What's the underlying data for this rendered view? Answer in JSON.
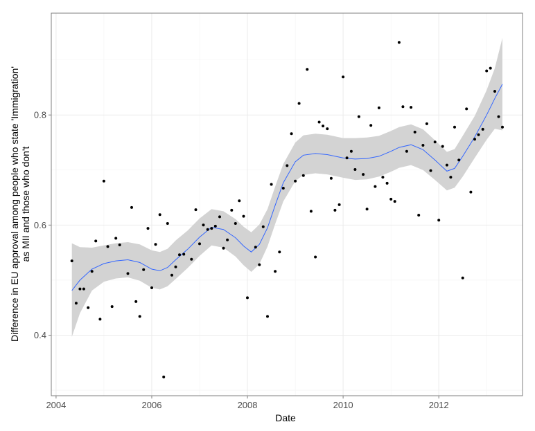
{
  "chart_data": {
    "type": "scatter",
    "xlabel": "Date",
    "ylabel_lines": [
      "Difference in EU approval among people who state 'Immigration'",
      "as MII and those who don't"
    ],
    "xlim": [
      2003.9,
      2013.75
    ],
    "ylim": [
      0.29,
      0.985
    ],
    "x_ticks": [
      2004,
      2006,
      2008,
      2010,
      2012
    ],
    "x_tick_labels": [
      "2004",
      "2006",
      "2008",
      "2010",
      "2012"
    ],
    "y_ticks": [
      0.4,
      0.6,
      0.8
    ],
    "y_tick_labels": [
      "0.4",
      "0.6",
      "0.8"
    ],
    "grid": true,
    "colors": {
      "points": "#000000",
      "smooth": "#3366ff",
      "band": "#d3d3d3",
      "grid": "#ebebeb",
      "panel_border": "#7f7f7f"
    },
    "points": [
      [
        2004.33,
        0.535
      ],
      [
        2004.42,
        0.458
      ],
      [
        2004.5,
        0.484
      ],
      [
        2004.58,
        0.484
      ],
      [
        2004.67,
        0.45
      ],
      [
        2004.75,
        0.516
      ],
      [
        2004.83,
        0.571
      ],
      [
        2004.92,
        0.429
      ],
      [
        2005.0,
        0.68
      ],
      [
        2005.08,
        0.561
      ],
      [
        2005.17,
        0.452
      ],
      [
        2005.25,
        0.576
      ],
      [
        2005.33,
        0.564
      ],
      [
        2005.5,
        0.512
      ],
      [
        2005.58,
        0.632
      ],
      [
        2005.67,
        0.461
      ],
      [
        2005.75,
        0.434
      ],
      [
        2005.83,
        0.519
      ],
      [
        2005.92,
        0.594
      ],
      [
        2006.0,
        0.486
      ],
      [
        2006.08,
        0.565
      ],
      [
        2006.17,
        0.619
      ],
      [
        2006.25,
        0.324
      ],
      [
        2006.33,
        0.603
      ],
      [
        2006.42,
        0.509
      ],
      [
        2006.5,
        0.524
      ],
      [
        2006.58,
        0.546
      ],
      [
        2006.67,
        0.547
      ],
      [
        2006.83,
        0.538
      ],
      [
        2006.92,
        0.628
      ],
      [
        2007.0,
        0.566
      ],
      [
        2007.08,
        0.6
      ],
      [
        2007.17,
        0.592
      ],
      [
        2007.25,
        0.594
      ],
      [
        2007.33,
        0.598
      ],
      [
        2007.42,
        0.615
      ],
      [
        2007.5,
        0.558
      ],
      [
        2007.58,
        0.573
      ],
      [
        2007.67,
        0.627
      ],
      [
        2007.75,
        0.603
      ],
      [
        2007.83,
        0.644
      ],
      [
        2007.92,
        0.616
      ],
      [
        2008.0,
        0.468
      ],
      [
        2008.17,
        0.56
      ],
      [
        2008.25,
        0.528
      ],
      [
        2008.33,
        0.597
      ],
      [
        2008.42,
        0.434
      ],
      [
        2008.5,
        0.674
      ],
      [
        2008.58,
        0.516
      ],
      [
        2008.67,
        0.551
      ],
      [
        2008.75,
        0.667
      ],
      [
        2008.83,
        0.708
      ],
      [
        2008.92,
        0.766
      ],
      [
        2009.0,
        0.68
      ],
      [
        2009.08,
        0.821
      ],
      [
        2009.17,
        0.69
      ],
      [
        2009.25,
        0.883
      ],
      [
        2009.33,
        0.625
      ],
      [
        2009.42,
        0.542
      ],
      [
        2009.5,
        0.787
      ],
      [
        2009.58,
        0.78
      ],
      [
        2009.67,
        0.775
      ],
      [
        2009.75,
        0.685
      ],
      [
        2009.83,
        0.627
      ],
      [
        2009.92,
        0.637
      ],
      [
        2010.0,
        0.869
      ],
      [
        2010.08,
        0.722
      ],
      [
        2010.17,
        0.734
      ],
      [
        2010.25,
        0.701
      ],
      [
        2010.33,
        0.797
      ],
      [
        2010.42,
        0.692
      ],
      [
        2010.5,
        0.629
      ],
      [
        2010.58,
        0.781
      ],
      [
        2010.67,
        0.67
      ],
      [
        2010.75,
        0.813
      ],
      [
        2010.83,
        0.687
      ],
      [
        2010.92,
        0.676
      ],
      [
        2011.0,
        0.647
      ],
      [
        2011.08,
        0.643
      ],
      [
        2011.17,
        0.932
      ],
      [
        2011.25,
        0.815
      ],
      [
        2011.33,
        0.734
      ],
      [
        2011.42,
        0.814
      ],
      [
        2011.5,
        0.769
      ],
      [
        2011.58,
        0.618
      ],
      [
        2011.67,
        0.745
      ],
      [
        2011.75,
        0.784
      ],
      [
        2011.83,
        0.699
      ],
      [
        2011.92,
        0.751
      ],
      [
        2012.0,
        0.609
      ],
      [
        2012.08,
        0.743
      ],
      [
        2012.17,
        0.709
      ],
      [
        2012.25,
        0.687
      ],
      [
        2012.33,
        0.778
      ],
      [
        2012.42,
        0.718
      ],
      [
        2012.5,
        0.504
      ],
      [
        2012.58,
        0.811
      ],
      [
        2012.67,
        0.66
      ],
      [
        2012.75,
        0.756
      ],
      [
        2012.83,
        0.764
      ],
      [
        2012.92,
        0.774
      ],
      [
        2013.0,
        0.88
      ],
      [
        2013.08,
        0.885
      ],
      [
        2013.17,
        0.843
      ],
      [
        2013.25,
        0.797
      ],
      [
        2013.33,
        0.778
      ]
    ],
    "smooth_fit": [
      [
        2004.33,
        0.481
      ],
      [
        2004.5,
        0.5
      ],
      [
        2004.75,
        0.52
      ],
      [
        2005.0,
        0.53
      ],
      [
        2005.25,
        0.535
      ],
      [
        2005.5,
        0.537
      ],
      [
        2005.75,
        0.532
      ],
      [
        2006.0,
        0.52
      ],
      [
        2006.17,
        0.517
      ],
      [
        2006.33,
        0.523
      ],
      [
        2006.5,
        0.537
      ],
      [
        2006.75,
        0.556
      ],
      [
        2007.0,
        0.578
      ],
      [
        2007.25,
        0.596
      ],
      [
        2007.5,
        0.592
      ],
      [
        2007.75,
        0.577
      ],
      [
        2007.92,
        0.562
      ],
      [
        2008.08,
        0.551
      ],
      [
        2008.25,
        0.565
      ],
      [
        2008.42,
        0.595
      ],
      [
        2008.58,
        0.636
      ],
      [
        2008.75,
        0.677
      ],
      [
        2009.0,
        0.715
      ],
      [
        2009.17,
        0.727
      ],
      [
        2009.42,
        0.73
      ],
      [
        2009.67,
        0.728
      ],
      [
        2010.0,
        0.722
      ],
      [
        2010.25,
        0.72
      ],
      [
        2010.5,
        0.721
      ],
      [
        2010.75,
        0.725
      ],
      [
        2011.0,
        0.734
      ],
      [
        2011.17,
        0.741
      ],
      [
        2011.42,
        0.746
      ],
      [
        2011.67,
        0.737
      ],
      [
        2011.92,
        0.718
      ],
      [
        2012.17,
        0.698
      ],
      [
        2012.33,
        0.703
      ],
      [
        2012.5,
        0.725
      ],
      [
        2012.75,
        0.76
      ],
      [
        2013.0,
        0.8
      ],
      [
        2013.17,
        0.83
      ],
      [
        2013.33,
        0.856
      ]
    ],
    "band_upper": [
      [
        2004.33,
        0.567
      ],
      [
        2004.5,
        0.56
      ],
      [
        2004.75,
        0.559
      ],
      [
        2005.0,
        0.563
      ],
      [
        2005.25,
        0.567
      ],
      [
        2005.5,
        0.569
      ],
      [
        2005.75,
        0.565
      ],
      [
        2006.0,
        0.554
      ],
      [
        2006.17,
        0.551
      ],
      [
        2006.33,
        0.557
      ],
      [
        2006.5,
        0.572
      ],
      [
        2006.75,
        0.59
      ],
      [
        2007.0,
        0.612
      ],
      [
        2007.25,
        0.629
      ],
      [
        2007.5,
        0.625
      ],
      [
        2007.75,
        0.611
      ],
      [
        2007.92,
        0.597
      ],
      [
        2008.08,
        0.587
      ],
      [
        2008.25,
        0.601
      ],
      [
        2008.42,
        0.629
      ],
      [
        2008.58,
        0.67
      ],
      [
        2008.75,
        0.711
      ],
      [
        2009.0,
        0.75
      ],
      [
        2009.17,
        0.763
      ],
      [
        2009.42,
        0.766
      ],
      [
        2009.67,
        0.764
      ],
      [
        2010.0,
        0.758
      ],
      [
        2010.25,
        0.758
      ],
      [
        2010.5,
        0.759
      ],
      [
        2010.75,
        0.762
      ],
      [
        2011.0,
        0.771
      ],
      [
        2011.17,
        0.778
      ],
      [
        2011.42,
        0.783
      ],
      [
        2011.67,
        0.774
      ],
      [
        2011.92,
        0.754
      ],
      [
        2012.17,
        0.733
      ],
      [
        2012.33,
        0.738
      ],
      [
        2012.5,
        0.762
      ],
      [
        2012.75,
        0.798
      ],
      [
        2013.0,
        0.845
      ],
      [
        2013.17,
        0.885
      ],
      [
        2013.33,
        0.94
      ]
    ],
    "band_lower": [
      [
        2004.33,
        0.397
      ],
      [
        2004.5,
        0.44
      ],
      [
        2004.75,
        0.481
      ],
      [
        2005.0,
        0.497
      ],
      [
        2005.25,
        0.503
      ],
      [
        2005.5,
        0.505
      ],
      [
        2005.75,
        0.499
      ],
      [
        2006.0,
        0.486
      ],
      [
        2006.17,
        0.483
      ],
      [
        2006.33,
        0.489
      ],
      [
        2006.5,
        0.502
      ],
      [
        2006.75,
        0.522
      ],
      [
        2007.0,
        0.544
      ],
      [
        2007.25,
        0.563
      ],
      [
        2007.5,
        0.559
      ],
      [
        2007.75,
        0.543
      ],
      [
        2007.92,
        0.527
      ],
      [
        2008.08,
        0.515
      ],
      [
        2008.25,
        0.529
      ],
      [
        2008.42,
        0.561
      ],
      [
        2008.58,
        0.602
      ],
      [
        2008.75,
        0.643
      ],
      [
        2009.0,
        0.68
      ],
      [
        2009.17,
        0.691
      ],
      [
        2009.42,
        0.694
      ],
      [
        2009.67,
        0.692
      ],
      [
        2010.0,
        0.686
      ],
      [
        2010.25,
        0.682
      ],
      [
        2010.5,
        0.683
      ],
      [
        2010.75,
        0.688
      ],
      [
        2011.0,
        0.697
      ],
      [
        2011.17,
        0.704
      ],
      [
        2011.42,
        0.709
      ],
      [
        2011.67,
        0.7
      ],
      [
        2011.92,
        0.682
      ],
      [
        2012.17,
        0.663
      ],
      [
        2012.33,
        0.668
      ],
      [
        2012.5,
        0.688
      ],
      [
        2012.75,
        0.722
      ],
      [
        2013.0,
        0.755
      ],
      [
        2013.17,
        0.775
      ],
      [
        2013.33,
        0.772
      ]
    ]
  }
}
